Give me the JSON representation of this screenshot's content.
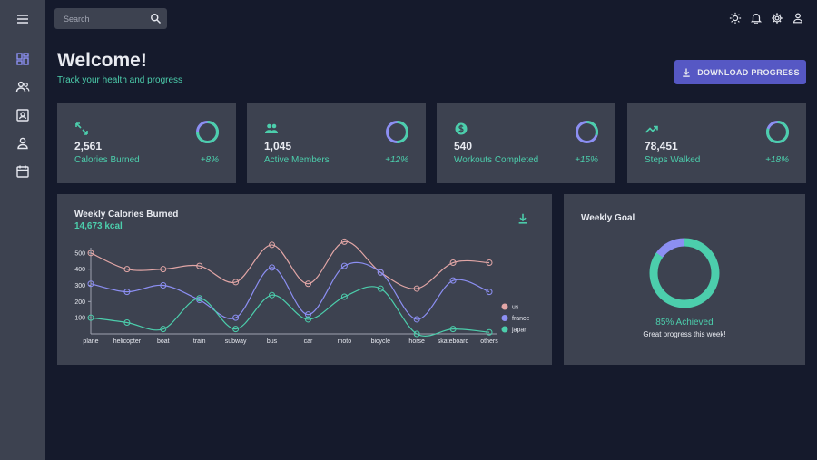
{
  "search": {
    "placeholder": "Search"
  },
  "header": {
    "title": "Welcome!",
    "subtitle": "Track your health and progress",
    "download_label": "DOWNLOAD PROGRESS"
  },
  "stats": [
    {
      "value": "2,561",
      "label": "Calories Burned",
      "increase": "+8%",
      "icon": "swap-arrows-icon",
      "progress": 0.75
    },
    {
      "value": "1,045",
      "label": "Active Members",
      "increase": "+12%",
      "icon": "people-icon",
      "progress": 0.5
    },
    {
      "value": "540",
      "label": "Workouts Completed",
      "increase": "+15%",
      "icon": "dollar-icon",
      "progress": 0.3
    },
    {
      "value": "78,451",
      "label": "Steps Walked",
      "increase": "+18%",
      "icon": "trend-up-icon",
      "progress": 0.8
    }
  ],
  "weekly_chart": {
    "title": "Weekly Calories Burned",
    "total": "14,673 kcal"
  },
  "goal": {
    "title": "Weekly Goal",
    "achieved": "85% Achieved",
    "message": "Great progress this week!",
    "progress": 0.85
  },
  "colors": {
    "accent": "#4cceac",
    "primary_button": "#5658c4",
    "panel": "#3d4250",
    "background": "#151a2c",
    "us": "#e2a6a6",
    "france": "#8c8ff3",
    "japan": "#4cceac"
  },
  "chart_data": {
    "type": "line",
    "categories": [
      "plane",
      "helicopter",
      "boat",
      "train",
      "subway",
      "bus",
      "car",
      "moto",
      "bicycle",
      "horse",
      "skateboard",
      "others"
    ],
    "ylim": [
      0,
      600
    ],
    "yticks": [
      100,
      200,
      300,
      400,
      500
    ],
    "legend_position": "right",
    "series": [
      {
        "name": "us",
        "values": [
          500,
          400,
          400,
          420,
          320,
          550,
          310,
          570,
          380,
          280,
          440,
          440
        ]
      },
      {
        "name": "france",
        "values": [
          310,
          260,
          300,
          210,
          100,
          410,
          120,
          420,
          380,
          90,
          330,
          260
        ]
      },
      {
        "name": "japan",
        "values": [
          100,
          70,
          30,
          220,
          30,
          240,
          90,
          230,
          280,
          0,
          30,
          10
        ]
      }
    ]
  }
}
